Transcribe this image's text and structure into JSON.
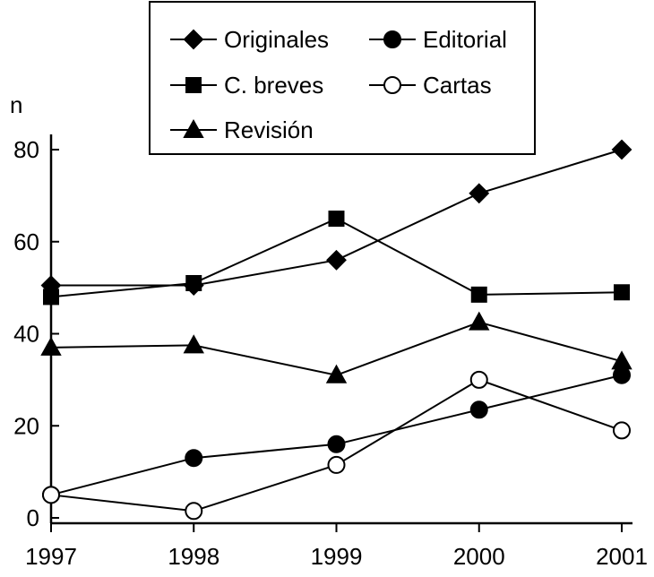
{
  "chart_data": {
    "type": "line",
    "x": [
      1997,
      1998,
      1999,
      2000,
      2001
    ],
    "xticks": [
      "1997",
      "1998",
      "1999",
      "2000",
      "2001"
    ],
    "ylabel": "n",
    "ylim": [
      0,
      80
    ],
    "yticks": [
      0,
      20,
      40,
      60,
      80
    ],
    "ytick_labels": [
      "0",
      "20",
      "40",
      "60",
      "80"
    ],
    "grid": false,
    "legend_position": "top-center",
    "series": [
      {
        "name": "Originales",
        "marker": "diamond",
        "filled": true,
        "values": [
          50.5,
          50.5,
          56,
          70.5,
          80
        ]
      },
      {
        "name": "Editorial",
        "marker": "circle",
        "filled": true,
        "values": [
          5,
          13,
          16,
          23.5,
          31
        ]
      },
      {
        "name": "C. breves",
        "marker": "square",
        "filled": true,
        "values": [
          48,
          51,
          65,
          48.5,
          49
        ]
      },
      {
        "name": "Cartas",
        "marker": "circle",
        "filled": false,
        "values": [
          5,
          1.5,
          11.5,
          30,
          19
        ]
      },
      {
        "name": "Revisión",
        "marker": "triangle",
        "filled": true,
        "values": [
          37,
          37.5,
          31,
          42.5,
          34
        ]
      }
    ]
  }
}
